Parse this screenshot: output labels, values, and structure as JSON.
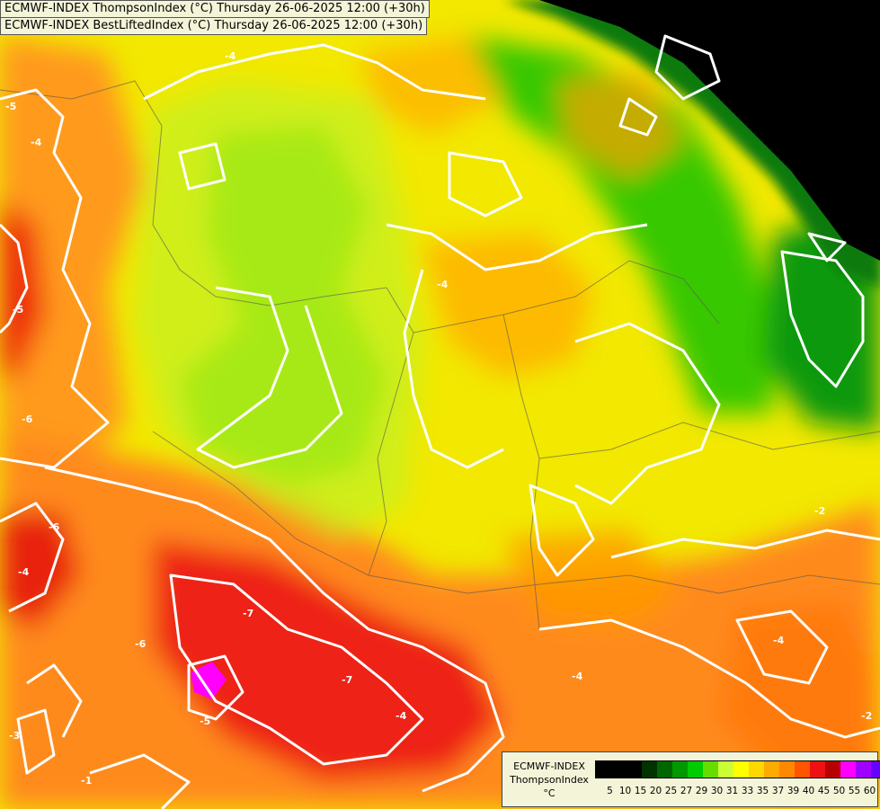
{
  "titles": {
    "line1": "ECMWF-INDEX ThompsonIndex (°C) Thursday 26-06-2025 12:00 (+30h)",
    "line2": "ECMWF-INDEX BestLiftedIndex (°C) Thursday 26-06-2025 12:00 (+30h)"
  },
  "legend": {
    "model": "ECMWF-INDEX",
    "parameter": "ThompsonIndex",
    "unit": "°C",
    "ticks": [
      "5",
      "10",
      "15",
      "20",
      "25",
      "27",
      "29",
      "30",
      "31",
      "33",
      "35",
      "37",
      "39",
      "40",
      "45",
      "50",
      "55",
      "60"
    ],
    "colors": [
      "#000000",
      "#000000",
      "#000000",
      "#003300",
      "#006600",
      "#009900",
      "#00cc00",
      "#66dd00",
      "#ccff33",
      "#ffff00",
      "#ffd700",
      "#ffaa00",
      "#ff8800",
      "#ff5500",
      "#ee1111",
      "#b80000",
      "#ff00ff",
      "#a000ff",
      "#6600ff",
      "#0000ff"
    ]
  },
  "contour_labels": [
    "-5",
    "-4",
    "-5",
    "-6",
    "-6",
    "-7",
    "-5",
    "-4",
    "-4",
    "-6",
    "-7",
    "-4",
    "-4",
    "-4",
    "-2",
    "-2",
    "-1",
    "-3",
    "-4"
  ]
}
